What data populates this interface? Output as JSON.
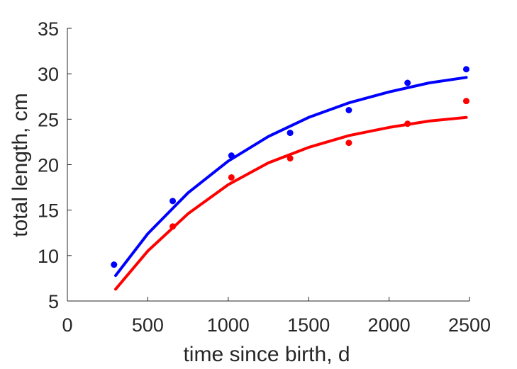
{
  "chart_data": {
    "type": "scatter",
    "title": "",
    "xlabel": "time since birth, d",
    "ylabel": "total length, cm",
    "xlim": [
      0,
      2500
    ],
    "ylim": [
      5,
      35
    ],
    "xticks": [
      0,
      500,
      1000,
      1500,
      2000,
      2500
    ],
    "yticks": [
      5,
      10,
      15,
      20,
      25,
      30,
      35
    ],
    "grid": false,
    "legend": "none",
    "series": [
      {
        "color": "#0000ff",
        "points": [
          {
            "x": 290,
            "y": 9.0
          },
          {
            "x": 655,
            "y": 16.0
          },
          {
            "x": 1020,
            "y": 21.0
          },
          {
            "x": 1385,
            "y": 23.5
          },
          {
            "x": 1750,
            "y": 26.0
          },
          {
            "x": 2115,
            "y": 29.0
          },
          {
            "x": 2480,
            "y": 30.5
          }
        ],
        "fit": [
          {
            "x": 300,
            "y": 7.8
          },
          {
            "x": 500,
            "y": 12.4
          },
          {
            "x": 750,
            "y": 16.9
          },
          {
            "x": 1000,
            "y": 20.4
          },
          {
            "x": 1250,
            "y": 23.1
          },
          {
            "x": 1500,
            "y": 25.2
          },
          {
            "x": 1750,
            "y": 26.8
          },
          {
            "x": 2000,
            "y": 28.0
          },
          {
            "x": 2250,
            "y": 29.0
          },
          {
            "x": 2480,
            "y": 29.6
          }
        ]
      },
      {
        "color": "#ff0000",
        "points": [
          {
            "x": 655,
            "y": 13.2
          },
          {
            "x": 1020,
            "y": 18.6
          },
          {
            "x": 1385,
            "y": 20.7
          },
          {
            "x": 1750,
            "y": 22.4
          },
          {
            "x": 2115,
            "y": 24.5
          },
          {
            "x": 2480,
            "y": 27.0
          }
        ],
        "fit": [
          {
            "x": 300,
            "y": 6.3
          },
          {
            "x": 500,
            "y": 10.5
          },
          {
            "x": 750,
            "y": 14.6
          },
          {
            "x": 1000,
            "y": 17.8
          },
          {
            "x": 1250,
            "y": 20.2
          },
          {
            "x": 1500,
            "y": 21.9
          },
          {
            "x": 1750,
            "y": 23.2
          },
          {
            "x": 2000,
            "y": 24.1
          },
          {
            "x": 2250,
            "y": 24.8
          },
          {
            "x": 2480,
            "y": 25.2
          }
        ]
      }
    ]
  }
}
